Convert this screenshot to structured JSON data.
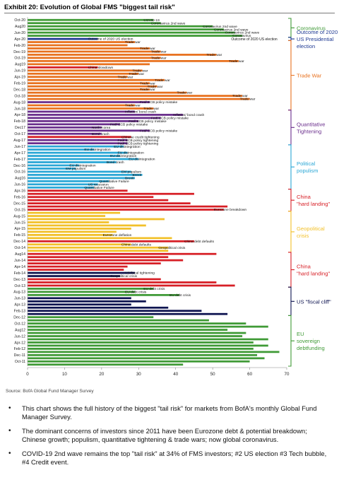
{
  "header": {
    "exhibit_title": "Exhibit 20: Evolution of Global FMS \"biggest tail risk\""
  },
  "source": "Source: BofA Global Fund Manager Survey",
  "bullets": [
    "This chart shows the full history of the biggest \"tail risk\" for markets from BofA's monthly Global Fund Manager Survey.",
    "The dominant concerns of investors since 2011 have been Eurozone debt & potential breakdown; Chinese growth; populism, quantitative tightening & trade wars; now global coronavirus.",
    "COVID-19 2nd wave remains the top \"tail risk\" at 34% of FMS investors; #2 US election #3 Tech bubble, #4 Credit event."
  ],
  "chart_data": {
    "type": "bar",
    "orientation": "horizontal",
    "title": "",
    "xlabel": "",
    "ylabel": "",
    "xlim": [
      0,
      70
    ],
    "xticks": [
      0,
      10,
      20,
      30,
      40,
      50,
      60,
      70
    ],
    "grid": false,
    "colors": {
      "Coronavirus": "#3f9a36",
      "Outcome of 2020 US Presidential election": "#1f3a93",
      "Trade War": "#e8711e",
      "Quantitative Tightening": "#6a2e8c",
      "Political populism": "#2aa7d6",
      "China \"hard landing\"": "#d71f26",
      "Geopolitical crisis": "#f2c029",
      "US \"fiscal cliff\"": "#0e1450",
      "EU sovereign debtfunding": "#3f9a36"
    },
    "bars": [
      {
        "month": "Oct-20",
        "value": 34,
        "category": "Coronavirus",
        "label": "COVID-19"
      },
      {
        "month": "Aug20",
        "value": 36,
        "category": "Coronavirus",
        "label": "Coronavirus 2nd wave"
      },
      {
        "month": "Jul-20",
        "value": 50,
        "category": "Coronavirus",
        "label": "Coronavirus 2nd wave"
      },
      {
        "month": "Jun-20",
        "value": 53,
        "category": "Coronavirus",
        "label": "Coronavirus 2nd wave"
      },
      {
        "month": "May-20",
        "value": 56,
        "category": "Coronavirus",
        "label": "Coronavirus 2nd wave"
      },
      {
        "month": "Apr-20",
        "value": 58,
        "category": "Coronavirus",
        "label": "Coronavirus"
      },
      {
        "month": "Feb-20",
        "value": 19,
        "category": "Outcome of 2020 US Presidential election",
        "label": "Outcome of 2020 US election"
      },
      {
        "month": "Dec-19",
        "value": 29,
        "category": "Trade War",
        "label": "Trade war"
      },
      {
        "month": "Nov-19",
        "value": 27,
        "category": "Trade War",
        "label": ""
      },
      {
        "month": "Oct-19",
        "value": 33,
        "category": "Trade War",
        "label": "Trade war"
      },
      {
        "month": "Sep-19",
        "value": 36,
        "category": "Trade War",
        "label": "Trade war"
      },
      {
        "month": "Aug-19",
        "value": 51,
        "category": "Trade War",
        "label": "Trade war"
      },
      {
        "month": "Jul-19",
        "value": 36,
        "category": "Trade War",
        "label": "Trade war"
      },
      {
        "month": "Jun-19",
        "value": 57,
        "category": "Trade War",
        "label": "Trade war"
      },
      {
        "month": "May-19",
        "value": 33,
        "category": "Trade War",
        "label": ""
      },
      {
        "month": "Apr-19",
        "value": 19,
        "category": "China \"hard landing\"",
        "label": "China slowdown"
      },
      {
        "month": "Mar-19",
        "value": 31,
        "category": "Trade War",
        "label": "Trade war"
      },
      {
        "month": "Feb-19",
        "value": 30,
        "category": "Trade War",
        "label": "Trade war"
      },
      {
        "month": "Jan-19",
        "value": 27,
        "category": "Trade War",
        "label": "Trade war"
      },
      {
        "month": "Dec-18",
        "value": 37,
        "category": "Trade War",
        "label": "Trade war"
      },
      {
        "month": "Nov-18",
        "value": 33,
        "category": "Trade War",
        "label": "Trade war"
      },
      {
        "month": "Oct-18",
        "value": 35,
        "category": "Trade War",
        "label": "Trade war"
      },
      {
        "month": "Sep-18",
        "value": 33,
        "category": "Trade War",
        "label": "Trade war"
      },
      {
        "month": "Aug-18",
        "value": 43,
        "category": "Trade War",
        "label": "Trade war"
      },
      {
        "month": "Jul-18",
        "value": 58,
        "category": "Trade War",
        "label": "Trade war"
      },
      {
        "month": "Jun-18",
        "value": 60,
        "category": "Trade War",
        "label": "Trade war"
      },
      {
        "month": "May-18",
        "value": 33,
        "category": "Quantitative Tightening",
        "label": "Fed/ ECB policy mistake"
      },
      {
        "month": "Apr-18",
        "value": 29,
        "category": "Trade War",
        "label": "Trade war"
      },
      {
        "month": "Mar-18",
        "value": 34,
        "category": "Trade War",
        "label": "Trade war"
      },
      {
        "month": "Feb-18",
        "value": 29,
        "category": "Quantitative Tightening",
        "label": "Inflation/ bond crash"
      },
      {
        "month": "Jan-18",
        "value": 42,
        "category": "Quantitative Tightening",
        "label": "Inflation/ bond crash"
      },
      {
        "month": "Dec-17",
        "value": 36,
        "category": "Quantitative Tightening",
        "label": "Fed/ ECB policy mistake"
      },
      {
        "month": "Nov-17",
        "value": 30,
        "category": "Quantitative Tightening",
        "label": "Fed/ ECB policy mistake"
      },
      {
        "month": "Oct-17",
        "value": 25,
        "category": "Quantitative Tightening",
        "label": "Fed/ ECB policy mistake"
      },
      {
        "month": "Sep-17",
        "value": 20,
        "category": "Quantitative Tightening",
        "label": "North Korea"
      },
      {
        "month": "Aug-17",
        "value": 33,
        "category": "Quantitative Tightening",
        "label": "Fed/ ECB policy mistake"
      },
      {
        "month": "Jul-17",
        "value": 20,
        "category": "Quantitative Tightening",
        "label": "Bond crash"
      },
      {
        "month": "Jun-17",
        "value": 28,
        "category": "China \"hard landing\"",
        "label": "Chinese credit tightening"
      },
      {
        "month": "May-17",
        "value": 27,
        "category": "Quantitative Tightening",
        "label": "Fed/ ECB policy tightening"
      },
      {
        "month": "Apr-17",
        "value": 27,
        "category": "Quantitative Tightening",
        "label": "Fed/ ECB policy tightening"
      },
      {
        "month": "Mar-17",
        "value": 26,
        "category": "Political populism",
        "label": "EU disintegration"
      },
      {
        "month": "Feb-17",
        "value": 18,
        "category": "Political populism",
        "label": "EU disintegration"
      },
      {
        "month": "Jan-17",
        "value": 27,
        "category": "Political populism",
        "label": "EU disintegration"
      },
      {
        "month": "Dec-16",
        "value": 25,
        "category": "Political populism",
        "label": "EU disintegration"
      },
      {
        "month": "Nov-16",
        "value": 30,
        "category": "Political populism",
        "label": "EU disintegration"
      },
      {
        "month": "Oct-16",
        "value": 24,
        "category": "Political populism",
        "label": "Bond crash"
      },
      {
        "month": "Sep-16",
        "value": 14,
        "category": "Political populism",
        "label": "EU disintegration"
      },
      {
        "month": "Aug-16",
        "value": 13,
        "category": "Political populism",
        "label": "EM populism"
      },
      {
        "month": "Jul-16",
        "value": 28,
        "category": "Political populism",
        "label": "EM populism"
      },
      {
        "month": "Jun-16",
        "value": 31,
        "category": "Political populism",
        "label": "Brexit"
      },
      {
        "month": "May-16",
        "value": 29,
        "category": "Political populism",
        "label": "Brexit"
      },
      {
        "month": "Apr-16",
        "value": 22,
        "category": "Political populism",
        "label": "Quantitative Failure"
      },
      {
        "month": "Mar-16",
        "value": 19,
        "category": "Political populism",
        "label": "US recession"
      },
      {
        "month": "Feb-16",
        "value": 18,
        "category": "Political populism",
        "label": "Quantitative Failure"
      },
      {
        "month": "Jan-16",
        "value": 27,
        "category": "China \"hard landing\"",
        "label": ""
      },
      {
        "month": "Dec-15",
        "value": 45,
        "category": "China \"hard landing\"",
        "label": ""
      },
      {
        "month": "Nov-15",
        "value": 34,
        "category": "China \"hard landing\"",
        "label": ""
      },
      {
        "month": "Oct-15",
        "value": 38,
        "category": "China \"hard landing\"",
        "label": ""
      },
      {
        "month": "Sep-15",
        "value": 44,
        "category": "China \"hard landing\"",
        "label": ""
      },
      {
        "month": "Aug-15",
        "value": 54,
        "category": "China \"hard landing\"",
        "label": ""
      },
      {
        "month": "Jul-15",
        "value": 53,
        "category": "China \"hard landing\"",
        "label": "Eurozone breakdown"
      },
      {
        "month": "Jun-15",
        "value": 25,
        "category": "Geopolitical crisis",
        "label": ""
      },
      {
        "month": "May-15",
        "value": 21,
        "category": "Geopolitical crisis",
        "label": ""
      },
      {
        "month": "Apr-15",
        "value": 37,
        "category": "Geopolitical crisis",
        "label": ""
      },
      {
        "month": "Mar-15",
        "value": 22,
        "category": "Geopolitical crisis",
        "label": ""
      },
      {
        "month": "Feb-15",
        "value": 32,
        "category": "Geopolitical crisis",
        "label": ""
      },
      {
        "month": "Jan-15",
        "value": 28,
        "category": "Geopolitical crisis",
        "label": ""
      },
      {
        "month": "Dec-14",
        "value": 24,
        "category": "Geopolitical crisis",
        "label": ""
      },
      {
        "month": "Nov-14",
        "value": 23,
        "category": "Geopolitical crisis",
        "label": "Eurozone deflation"
      },
      {
        "month": "Oct-14",
        "value": 39,
        "category": "Geopolitical crisis",
        "label": ""
      },
      {
        "month": "Sep-14",
        "value": 45,
        "category": "China \"hard landing\"",
        "label": "China debt defaults"
      },
      {
        "month": "Aug-14",
        "value": 28,
        "category": "Geopolitical crisis",
        "label": "China debt defaults"
      },
      {
        "month": "Jul-14",
        "value": 38,
        "category": "Geopolitical crisis",
        "label": "Geopolitical crisis"
      },
      {
        "month": "Jun-14",
        "value": 38,
        "category": "Geopolitical crisis",
        "label": ""
      },
      {
        "month": "May-14",
        "value": 51,
        "category": "China \"hard landing\"",
        "label": ""
      },
      {
        "month": "Apr-14",
        "value": 38,
        "category": "China \"hard landing\"",
        "label": ""
      },
      {
        "month": "Mar-14",
        "value": 42,
        "category": "China \"hard landing\"",
        "label": ""
      },
      {
        "month": "Feb-14",
        "value": 36,
        "category": "China \"hard landing\"",
        "label": ""
      },
      {
        "month": "Jan-14",
        "value": 27,
        "category": "China \"hard landing\"",
        "label": ""
      },
      {
        "month": "Dec-13",
        "value": 26,
        "category": "China \"hard landing\"",
        "label": ""
      },
      {
        "month": "Nov-13",
        "value": 29,
        "category": "US \"fiscal cliff\"",
        "label": "US fiscal tightening"
      },
      {
        "month": "Oct-13",
        "value": 25,
        "category": "US \"fiscal cliff\"",
        "label": "Geopolitical crisis"
      },
      {
        "month": "Sep-13",
        "value": 36,
        "category": "China \"hard landing\"",
        "label": ""
      },
      {
        "month": "Aug-13",
        "value": 51,
        "category": "China \"hard landing\"",
        "label": ""
      },
      {
        "month": "Jul-13",
        "value": 56,
        "category": "China \"hard landing\"",
        "label": ""
      },
      {
        "month": "Jun-13",
        "value": 34,
        "category": "EU sovereign debtfunding",
        "label": "EU debt crisis"
      },
      {
        "month": "May-13",
        "value": 29,
        "category": "EU sovereign debtfunding",
        "label": "EU debt crisis"
      },
      {
        "month": "Apr-13",
        "value": 41,
        "category": "EU sovereign debtfunding",
        "label": "EU debt crisis"
      },
      {
        "month": "Mar-13",
        "value": 28,
        "category": "US \"fiscal cliff\"",
        "label": ""
      },
      {
        "month": "Feb-13",
        "value": 32,
        "category": "US \"fiscal cliff\"",
        "label": ""
      },
      {
        "month": "Jan-13",
        "value": 28,
        "category": "US \"fiscal cliff\"",
        "label": ""
      },
      {
        "month": "Dec-12",
        "value": 38,
        "category": "US \"fiscal cliff\"",
        "label": ""
      },
      {
        "month": "Nov-12",
        "value": 47,
        "category": "US \"fiscal cliff\"",
        "label": ""
      },
      {
        "month": "Oct-12",
        "value": 54,
        "category": "US \"fiscal cliff\"",
        "label": ""
      },
      {
        "month": "Sep-12",
        "value": 34,
        "category": "EU sovereign debtfunding",
        "label": ""
      },
      {
        "month": "Aug-12",
        "value": 49,
        "category": "EU sovereign debtfunding",
        "label": ""
      },
      {
        "month": "Jul-12",
        "value": 59,
        "category": "EU sovereign debtfunding",
        "label": ""
      },
      {
        "month": "Jun-12",
        "value": 65,
        "category": "EU sovereign debtfunding",
        "label": ""
      },
      {
        "month": "May-12",
        "value": 54,
        "category": "EU sovereign debtfunding",
        "label": ""
      },
      {
        "month": "Apr-12",
        "value": 59,
        "category": "EU sovereign debtfunding",
        "label": ""
      },
      {
        "month": "Mar-12",
        "value": 58,
        "category": "EU sovereign debtfunding",
        "label": ""
      },
      {
        "month": "Feb-12",
        "value": 65,
        "category": "EU sovereign debtfunding",
        "label": ""
      },
      {
        "month": "Jan-12",
        "value": 61,
        "category": "EU sovereign debtfunding",
        "label": ""
      },
      {
        "month": "Dec-11",
        "value": 65,
        "category": "EU sovereign debtfunding",
        "label": ""
      },
      {
        "month": "Nov-11",
        "value": 61,
        "category": "EU sovereign debtfunding",
        "label": ""
      },
      {
        "month": "Oct-11",
        "value": 68,
        "category": "EU sovereign debtfunding",
        "label": ""
      },
      {
        "month": "Sep-11",
        "value": 62,
        "category": "EU sovereign debtfunding",
        "label": ""
      },
      {
        "month": "Aug-11",
        "value": 64,
        "category": "EU sovereign debtfunding",
        "label": ""
      },
      {
        "month": "Jul-11",
        "value": 60,
        "category": "EU sovereign debtfunding",
        "label": ""
      },
      {
        "month": "Jun-11",
        "value": 42,
        "category": "EU sovereign debtfunding",
        "label": ""
      }
    ],
    "y_tick_labels": [
      "Oct-20",
      "Aug20",
      "Jun-20",
      "Apr-20",
      "Feb-20",
      "Dec-19",
      "Oct-19",
      "Aug19",
      "Jun-19",
      "Apr-19",
      "Feb-19",
      "Dec-18",
      "Oct-18",
      "Aug-18",
      "Jun-18",
      "Apr-18",
      "Feb-18",
      "Dec17",
      "Oct-17",
      "Aug-17",
      "Jun-17",
      "Apr-17",
      "Feb-17",
      "Dec-16",
      "Oct-16",
      "Aug16",
      "Jun-16",
      "Apr-16",
      "Feb-16",
      "Dec-15",
      "Oct-15",
      "Aug-15",
      "Jun-15",
      "Apr-15",
      "Feb-15",
      "Dec-14",
      "Oct-14",
      "Aug14",
      "Jun-14",
      "Apr-14",
      "Feb-14",
      "Dec-13",
      "Oct-13",
      "Aug-13",
      "Jun-13",
      "Apr-13",
      "Feb-13",
      "Dec-12",
      "Oct-12",
      "Aug12",
      "Jun-12",
      "Apr-12",
      "Feb-12",
      "Dec-11",
      "Oct-11",
      "Aug-11",
      "Jun-11"
    ],
    "annotations": [
      {
        "text": "Outcome of 2020 US election",
        "value": 55,
        "month": "Feb-20",
        "color": "#1f3a93"
      }
    ],
    "legend_groups": [
      {
        "lines": [
          "Coronavirus"
        ],
        "color": "#3f9a36",
        "from": "Oct-20",
        "to": "Apr-20"
      },
      {
        "lines": [
          "Outcome of 2020",
          "US Presidential",
          "election"
        ],
        "color": "#1f3a93",
        "from": "Feb-20",
        "to": "Feb-20"
      },
      {
        "lines": [
          "Trade War"
        ],
        "color": "#e8711e",
        "from": "Dec-19",
        "to": "Mar-18"
      },
      {
        "lines": [
          "Quantitative",
          "Tightening"
        ],
        "color": "#6a2e8c",
        "from": "Feb-18",
        "to": "Apr-17"
      },
      {
        "lines": [
          "Political",
          "populism"
        ],
        "color": "#2aa7d6",
        "from": "Mar-17",
        "to": "Feb-16"
      },
      {
        "lines": [
          "China",
          "\"hard landing\""
        ],
        "color": "#d71f26",
        "from": "Jan-16",
        "to": "Jul-15"
      },
      {
        "lines": [
          "Geopolitical",
          "crisis"
        ],
        "color": "#f2c029",
        "from": "Jun-15",
        "to": "Jun-14"
      },
      {
        "lines": [
          "China",
          "\"hard landing\""
        ],
        "color": "#d71f26",
        "from": "May-14",
        "to": "Jul-13"
      },
      {
        "lines": [
          "US \"fiscal cliff\""
        ],
        "color": "#0e1450",
        "from": "Jun-13",
        "to": "Oct-12"
      },
      {
        "lines": [
          "EU",
          "sovereign",
          "debtfunding"
        ],
        "color": "#3f9a36",
        "from": "Sep-12",
        "to": "Jun-11"
      }
    ]
  }
}
